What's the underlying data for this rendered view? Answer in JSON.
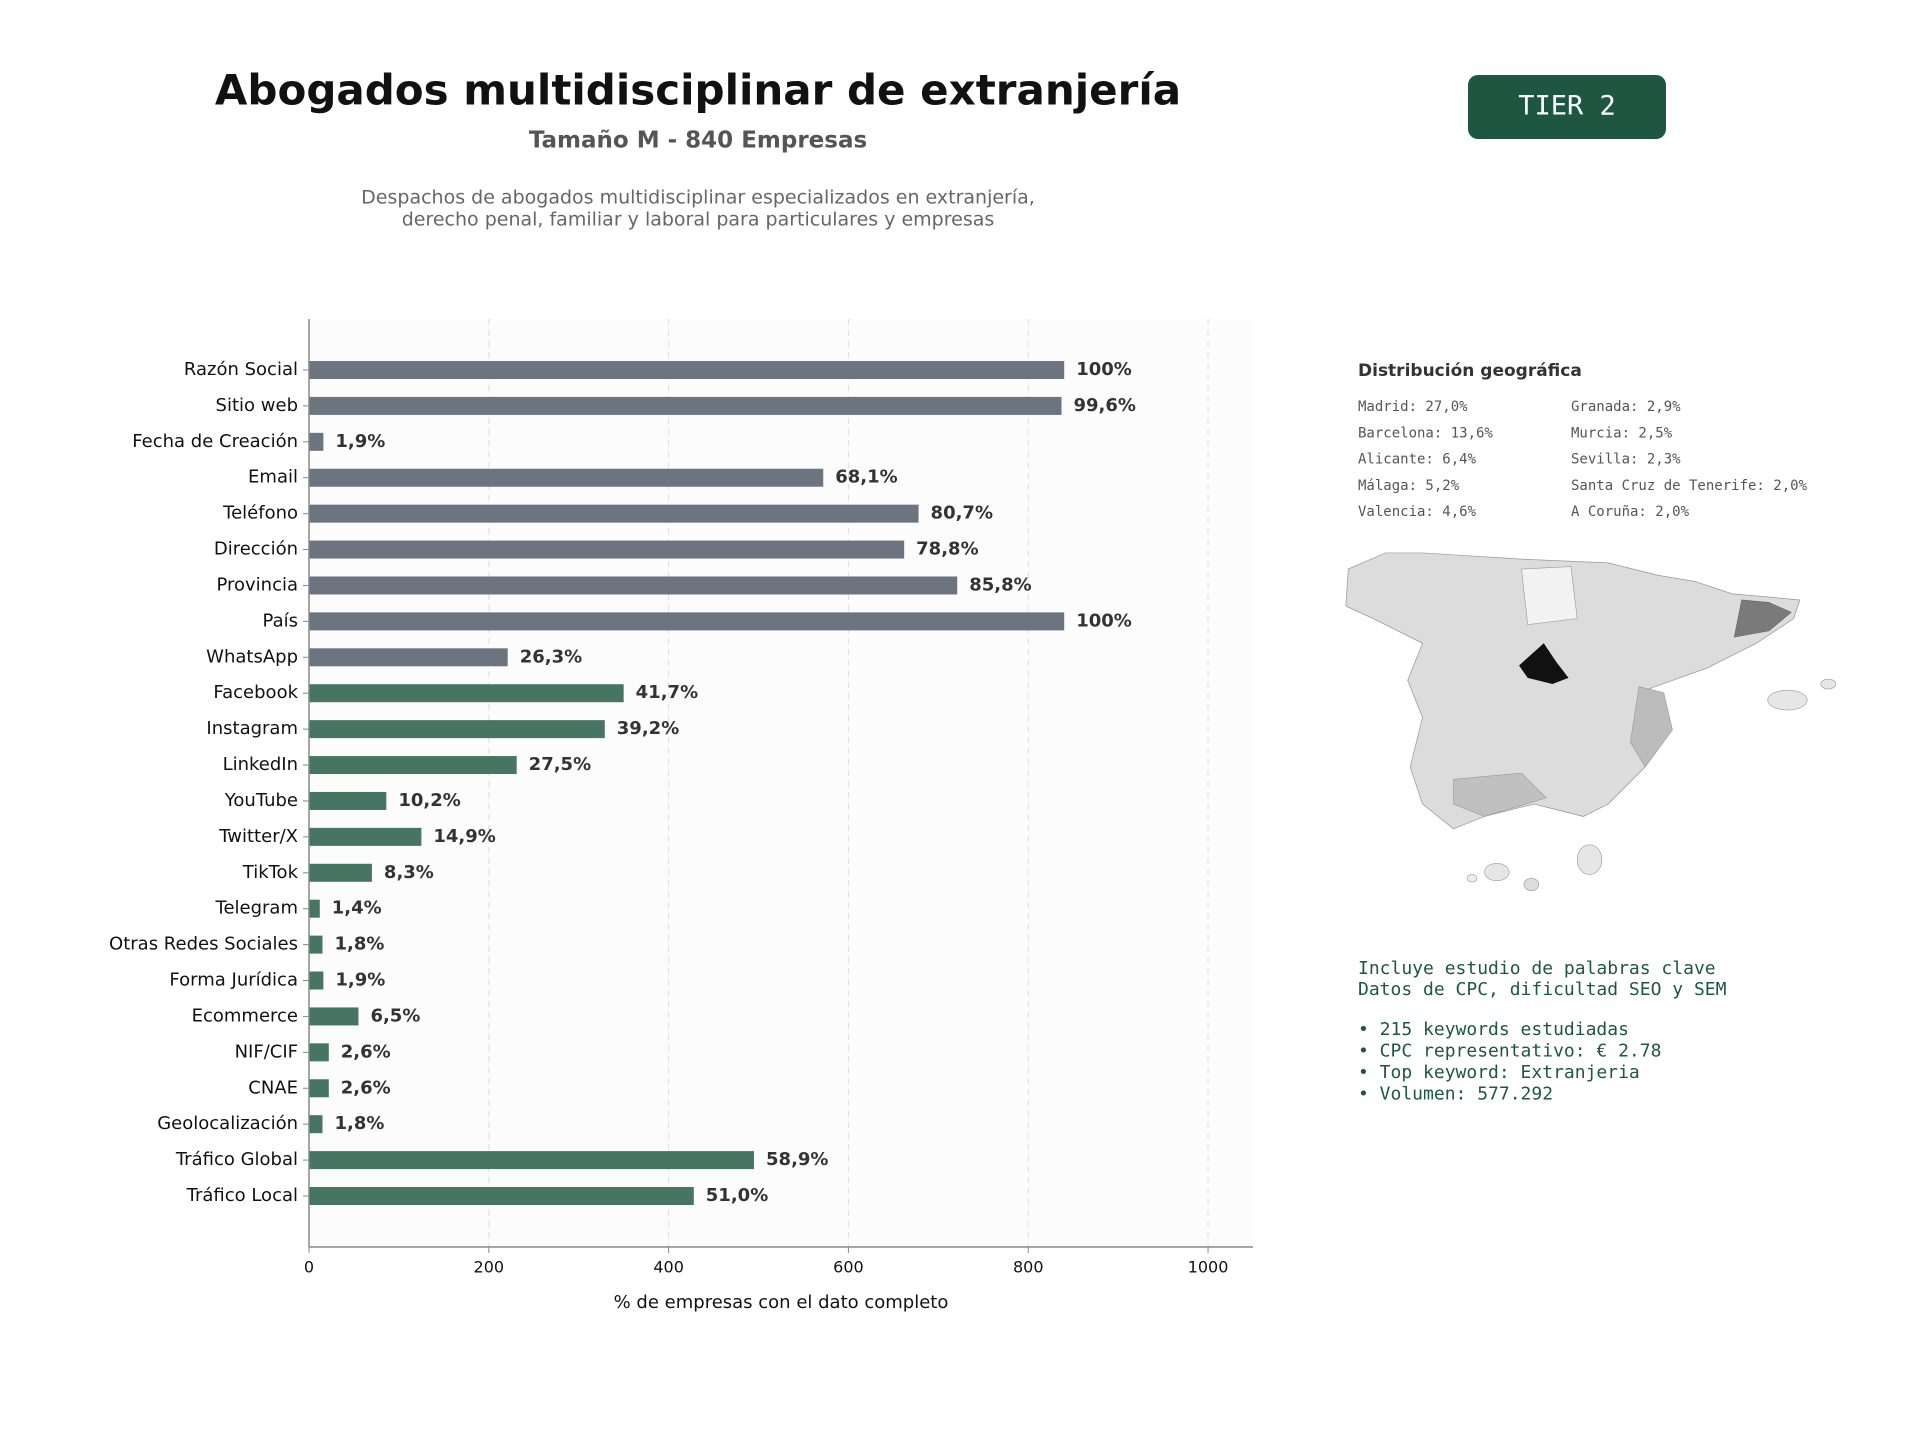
{
  "chart_data": {
    "type": "bar",
    "orientation": "horizontal",
    "title": "Abogados multidisciplinar de extranjería",
    "subtitle": "Tamaño M - 840 Empresas",
    "description": [
      "Despachos de abogados multidisciplinar especializados en extranjería,",
      "derecho penal, familiar y laboral para particulares y empresas"
    ],
    "xlabel": "% de empresas con el dato completo",
    "categories": [
      "Razón Social",
      "Sitio web",
      "Fecha de Creación",
      "Email",
      "Teléfono",
      "Dirección",
      "Provincia",
      "País",
      "WhatsApp",
      "Facebook",
      "Instagram",
      "LinkedIn",
      "YouTube",
      "Twitter/X",
      "TikTok",
      "Telegram",
      "Otras Redes Sociales",
      "Forma Jurídica",
      "Ecommerce",
      "NIF/CIF",
      "CNAE",
      "Geolocalización",
      "Tráfico Global",
      "Tráfico Local"
    ],
    "values": [
      840,
      837,
      16,
      572,
      678,
      662,
      721,
      840,
      221,
      350,
      329,
      231,
      86,
      125,
      70,
      12,
      15,
      16,
      55,
      22,
      22,
      15,
      495,
      428
    ],
    "value_labels": [
      "100%",
      "99,6%",
      "1,9%",
      "68,1%",
      "80,7%",
      "78,8%",
      "85,8%",
      "100%",
      "26,3%",
      "41,7%",
      "39,2%",
      "27,5%",
      "10,2%",
      "14,9%",
      "8,3%",
      "1,4%",
      "1,8%",
      "1,9%",
      "6,5%",
      "2,6%",
      "2,6%",
      "1,8%",
      "58,9%",
      "51,0%"
    ],
    "colors": [
      "#6c7480",
      "#6c7480",
      "#6c7480",
      "#6c7480",
      "#6c7480",
      "#6c7480",
      "#6c7480",
      "#6c7480",
      "#6c7480",
      "#467563",
      "#467563",
      "#467563",
      "#467563",
      "#467563",
      "#467563",
      "#467563",
      "#467563",
      "#467563",
      "#467563",
      "#467563",
      "#467563",
      "#467563",
      "#467563",
      "#467563"
    ],
    "xlim": [
      0,
      1050
    ],
    "xticks": [
      0,
      200,
      400,
      600,
      800,
      1000
    ],
    "grid": true
  },
  "badge": "TIER 2",
  "geo": {
    "title": "Distribución geográfica",
    "items": [
      [
        "Madrid: 27,0%",
        "Barcelona: 13,6%",
        "Alicante: 6,4%",
        "Málaga: 5,2%",
        "Valencia: 4,6%"
      ],
      [
        "Granada: 2,9%",
        "Murcia: 2,5%",
        "Sevilla: 2,3%",
        "Santa Cruz de Tenerife: 2,0%",
        "A Coruña: 2,0%"
      ]
    ]
  },
  "keywords": {
    "intro": [
      "Incluye estudio de palabras clave",
      "Datos de CPC, dificultad SEO y SEM"
    ],
    "bullets": [
      "• 215 keywords estudiadas",
      "• CPC representativo: € 2.78",
      "• Top keyword: Extranjeria",
      "• Volumen: 577.292"
    ]
  }
}
